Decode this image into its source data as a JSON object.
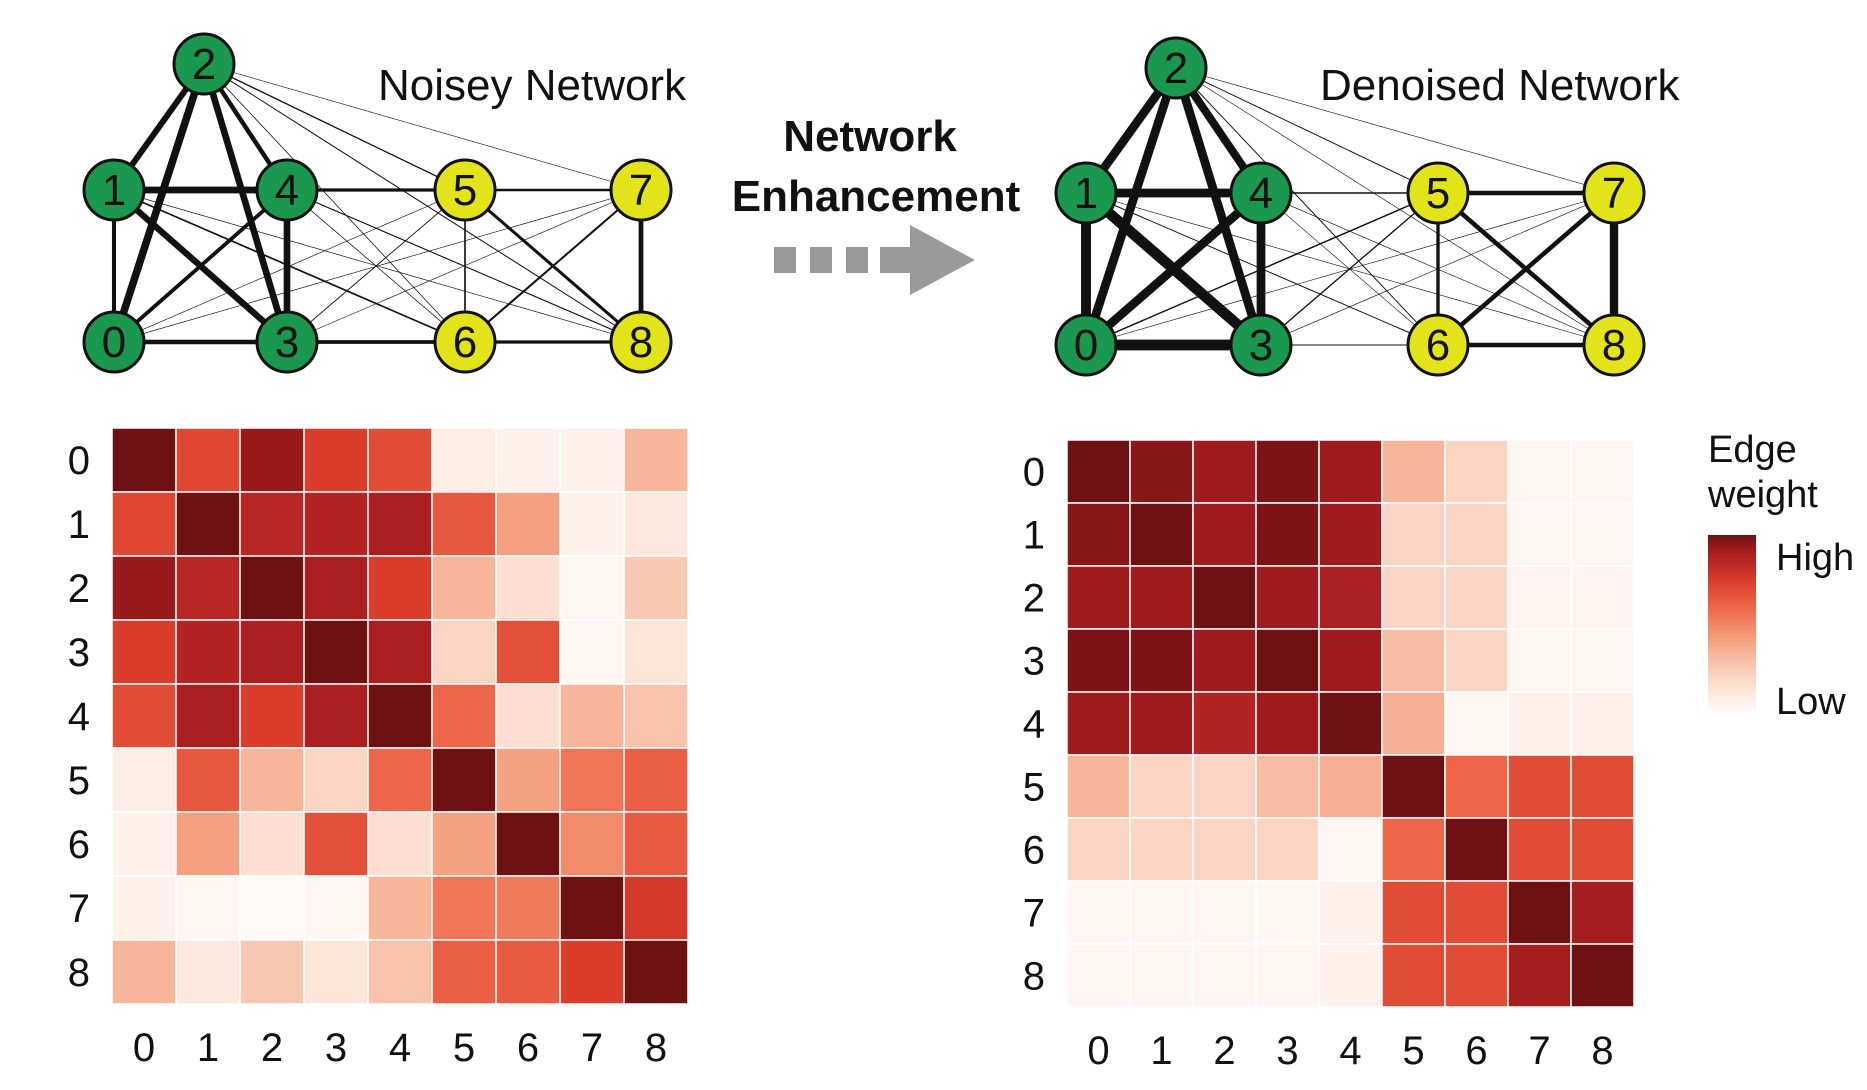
{
  "left_network": {
    "title": "Noisey Network"
  },
  "right_network": {
    "title": "Denoised Network"
  },
  "transition": {
    "line1": "Network",
    "line2": "Enhancement"
  },
  "node_colors": {
    "group_a": "#1a9850",
    "group_b": "#e3e31a"
  },
  "nodes": [
    "0",
    "1",
    "2",
    "3",
    "4",
    "5",
    "6",
    "7",
    "8"
  ],
  "legend": {
    "title_line1": "Edge",
    "title_line2": "weight",
    "high": "High",
    "low": "Low"
  },
  "colormap": [
    "#ffffff",
    "#fbd9c8",
    "#f5a585",
    "#ee6547",
    "#d93b2b",
    "#a81d1f",
    "#6e1112"
  ],
  "chart_data": [
    {
      "type": "heatmap",
      "name": "noisy",
      "x": [
        "0",
        "1",
        "2",
        "3",
        "4",
        "5",
        "6",
        "7",
        "8"
      ],
      "y": [
        "0",
        "1",
        "2",
        "3",
        "4",
        "5",
        "6",
        "7",
        "8"
      ],
      "values": [
        [
          1.0,
          0.62,
          0.88,
          0.66,
          0.6,
          0.08,
          0.06,
          0.06,
          0.28
        ],
        [
          0.62,
          1.0,
          0.78,
          0.8,
          0.82,
          0.55,
          0.35,
          0.06,
          0.1
        ],
        [
          0.88,
          0.78,
          1.0,
          0.82,
          0.66,
          0.28,
          0.14,
          0.04,
          0.22
        ],
        [
          0.66,
          0.8,
          0.82,
          1.0,
          0.82,
          0.18,
          0.58,
          0.04,
          0.12
        ],
        [
          0.6,
          0.82,
          0.66,
          0.82,
          1.0,
          0.5,
          0.14,
          0.28,
          0.24
        ],
        [
          0.08,
          0.55,
          0.28,
          0.18,
          0.5,
          1.0,
          0.34,
          0.46,
          0.52
        ],
        [
          0.06,
          0.35,
          0.14,
          0.58,
          0.14,
          0.34,
          1.0,
          0.4,
          0.54
        ],
        [
          0.06,
          0.04,
          0.02,
          0.04,
          0.28,
          0.46,
          0.44,
          1.0,
          0.68
        ],
        [
          0.28,
          0.1,
          0.22,
          0.12,
          0.24,
          0.52,
          0.54,
          0.66,
          1.0
        ]
      ]
    },
    {
      "type": "heatmap",
      "name": "denoised",
      "x": [
        "0",
        "1",
        "2",
        "3",
        "4",
        "5",
        "6",
        "7",
        "8"
      ],
      "y": [
        "0",
        "1",
        "2",
        "3",
        "4",
        "5",
        "6",
        "7",
        "8"
      ],
      "values": [
        [
          1.0,
          0.92,
          0.86,
          0.96,
          0.86,
          0.28,
          0.18,
          0.04,
          0.04
        ],
        [
          0.92,
          1.0,
          0.86,
          0.96,
          0.86,
          0.18,
          0.18,
          0.04,
          0.04
        ],
        [
          0.86,
          0.86,
          1.0,
          0.86,
          0.82,
          0.18,
          0.18,
          0.05,
          0.05
        ],
        [
          0.96,
          0.96,
          0.86,
          1.0,
          0.86,
          0.26,
          0.18,
          0.04,
          0.04
        ],
        [
          0.86,
          0.86,
          0.8,
          0.86,
          1.0,
          0.3,
          0.04,
          0.06,
          0.06
        ],
        [
          0.28,
          0.18,
          0.18,
          0.26,
          0.3,
          1.0,
          0.5,
          0.6,
          0.6
        ],
        [
          0.18,
          0.18,
          0.18,
          0.18,
          0.04,
          0.5,
          1.0,
          0.6,
          0.6
        ],
        [
          0.04,
          0.04,
          0.04,
          0.03,
          0.06,
          0.6,
          0.6,
          1.0,
          0.84
        ],
        [
          0.04,
          0.04,
          0.04,
          0.04,
          0.06,
          0.6,
          0.6,
          0.84,
          1.0
        ]
      ]
    }
  ]
}
